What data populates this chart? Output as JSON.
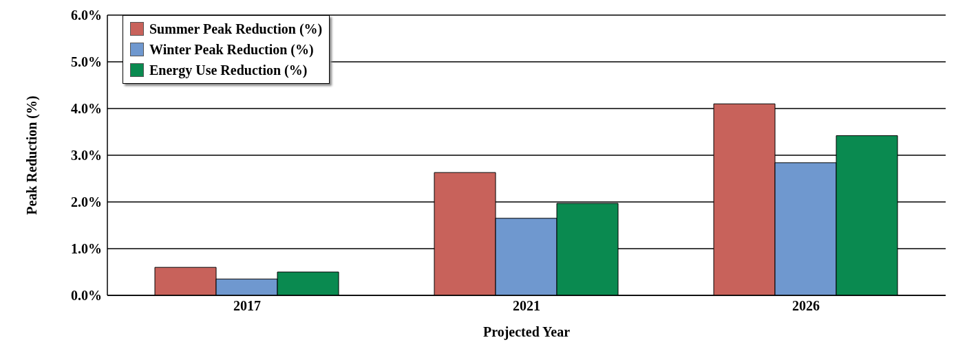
{
  "chart_data": {
    "type": "bar",
    "xlabel": "Projected Year",
    "ylabel": "Peak Reduction  (%)",
    "categories": [
      "2017",
      "2021",
      "2026"
    ],
    "series": [
      {
        "name": "Summer Peak Reduction (%)",
        "color": "#c8625b",
        "values": [
          0.6,
          2.63,
          4.1
        ]
      },
      {
        "name": "Winter Peak Reduction (%)",
        "color": "#6f98cf",
        "values": [
          0.35,
          1.65,
          2.84
        ]
      },
      {
        "name": "Energy Use Reduction (%)",
        "color": "#0a8a50",
        "values": [
          0.5,
          1.97,
          3.42
        ]
      }
    ],
    "ylim": [
      0,
      6
    ],
    "yticks": [
      {
        "value": 0,
        "label": "0.0%"
      },
      {
        "value": 1,
        "label": "1.0%"
      },
      {
        "value": 2,
        "label": "2.0%"
      },
      {
        "value": 3,
        "label": "3.0%"
      },
      {
        "value": 4,
        "label": "4.0%"
      },
      {
        "value": 5,
        "label": "5.0%"
      },
      {
        "value": 6,
        "label": "6.0%"
      }
    ],
    "grid": "y",
    "legend": "top left"
  }
}
